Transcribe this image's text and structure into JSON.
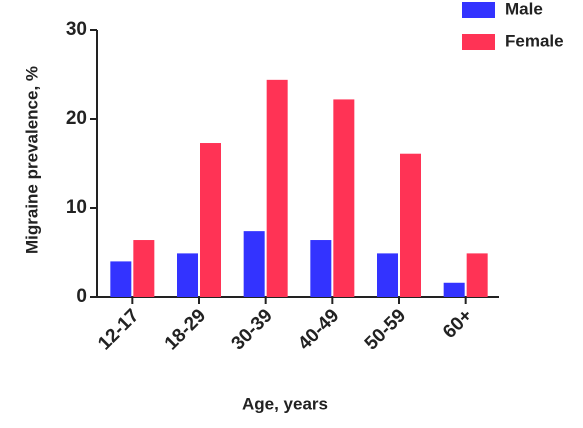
{
  "chart_data": {
    "type": "bar",
    "x_label": "Age, years",
    "y_label": "Migraine prevalence, %",
    "categories": [
      "12-17",
      "18-29",
      "30-39",
      "40-49",
      "50-59",
      "60+"
    ],
    "series": [
      {
        "name": "Male",
        "color": "#3333ff",
        "values": [
          4.0,
          4.9,
          7.4,
          6.4,
          4.9,
          1.6
        ]
      },
      {
        "name": "Female",
        "color": "#ff3355",
        "values": [
          6.4,
          17.3,
          24.4,
          22.2,
          16.1,
          4.9
        ]
      }
    ],
    "ylim": [
      0,
      30
    ],
    "yticks": [
      0,
      10,
      20,
      30
    ],
    "legend": "top-right"
  }
}
